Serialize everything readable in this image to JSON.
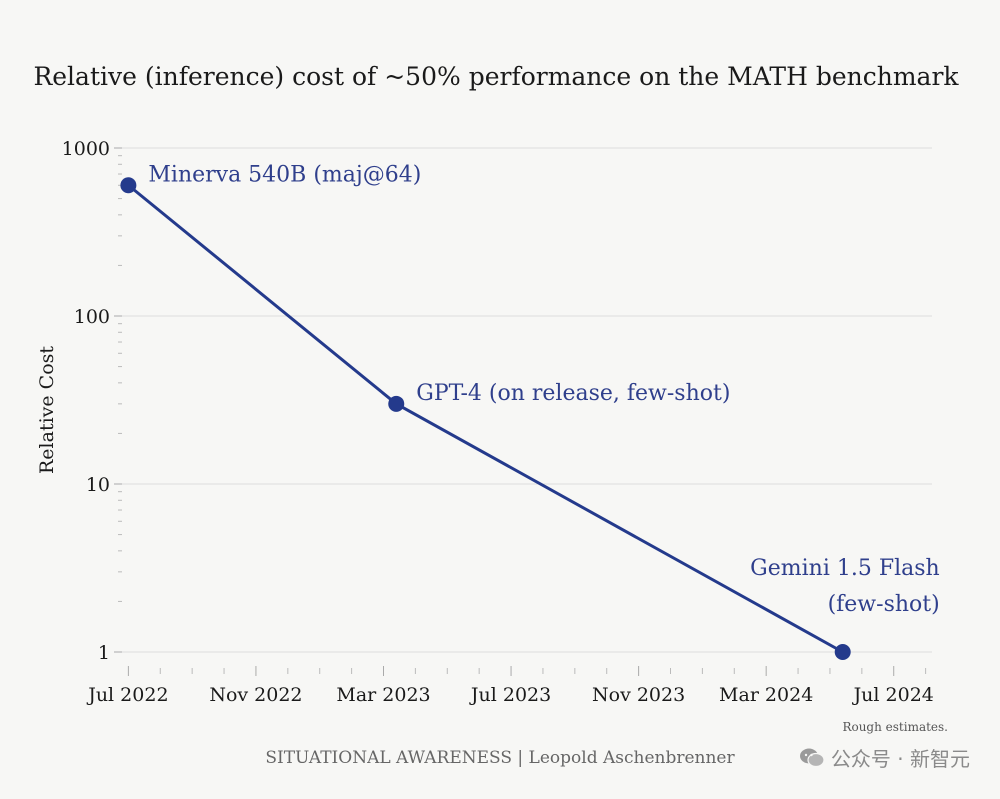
{
  "chart_data": {
    "type": "line",
    "title": "Relative (inference) cost of ~50% performance on the MATH benchmark",
    "xlabel": "",
    "ylabel": "Relative Cost",
    "yscale": "log",
    "ylim": [
      1,
      1000
    ],
    "yticks": [
      {
        "value": 1,
        "label": "1"
      },
      {
        "value": 10,
        "label": "10"
      },
      {
        "value": 100,
        "label": "100"
      },
      {
        "value": 1000,
        "label": "1000"
      }
    ],
    "xlim_months": [
      -0.2,
      25.2
    ],
    "xticks": [
      {
        "month": 0,
        "label": "Jul 2022"
      },
      {
        "month": 4,
        "label": "Nov 2022"
      },
      {
        "month": 8,
        "label": "Mar 2023"
      },
      {
        "month": 12,
        "label": "Jul 2023"
      },
      {
        "month": 16,
        "label": "Nov 2023"
      },
      {
        "month": 20,
        "label": "Mar 2024"
      },
      {
        "month": 24,
        "label": "Jul 2024"
      }
    ],
    "series": [
      {
        "name": "Relative cost",
        "points": [
          {
            "date": "2022-07",
            "month": 0,
            "value": 600,
            "label": [
              "Minerva 540B (maj@64)"
            ],
            "label_pos": "right"
          },
          {
            "date": "2023-03",
            "month": 8.4,
            "value": 30,
            "label": [
              "GPT-4 (on release, few-shot)"
            ],
            "label_pos": "right"
          },
          {
            "date": "2024-05",
            "month": 22.4,
            "value": 1,
            "label": [
              "Gemini 1.5 Flash",
              "(few-shot)"
            ],
            "label_pos": "above"
          }
        ]
      }
    ],
    "note": "Rough estimates.",
    "colors": {
      "line": "#243a8c",
      "annotation": "#2f3f8c"
    }
  },
  "footer": {
    "credit": "SITUATIONAL AWARENESS | Leopold Aschenbrenner"
  },
  "watermark": {
    "text": "公众号 · 新智元",
    "icon": "wechat-icon"
  }
}
